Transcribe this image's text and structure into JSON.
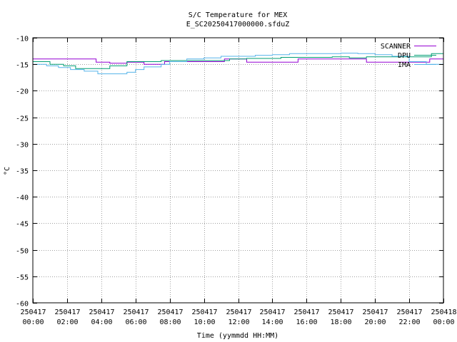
{
  "colors": {
    "background": "#ffffff",
    "axis": "#000000",
    "grid": "#a0a0a0",
    "SCANNER": "#9400d3",
    "DPU": "#009e73",
    "IMA": "#56b4e9"
  },
  "chart_data": {
    "type": "line",
    "title": "S/C Temperature for MEX",
    "subtitle": "E_SC20250417000000.sfduZ",
    "xlabel": "Time (yymmdd HH:MM)",
    "ylabel": "°C",
    "ylim": [
      -60,
      -10
    ],
    "xlim_hours": [
      0,
      24
    ],
    "grid": true,
    "legend_position": "top-right",
    "y_ticks": [
      -10,
      -15,
      -20,
      -25,
      -30,
      -35,
      -40,
      -45,
      -50,
      -55,
      -60
    ],
    "x_ticks": [
      {
        "date": "250417",
        "time": "00:00",
        "hour": 0
      },
      {
        "date": "250417",
        "time": "02:00",
        "hour": 2
      },
      {
        "date": "250417",
        "time": "04:00",
        "hour": 4
      },
      {
        "date": "250417",
        "time": "06:00",
        "hour": 6
      },
      {
        "date": "250417",
        "time": "08:00",
        "hour": 8
      },
      {
        "date": "250417",
        "time": "10:00",
        "hour": 10
      },
      {
        "date": "250417",
        "time": "12:00",
        "hour": 12
      },
      {
        "date": "250417",
        "time": "14:00",
        "hour": 14
      },
      {
        "date": "250417",
        "time": "16:00",
        "hour": 16
      },
      {
        "date": "250417",
        "time": "18:00",
        "hour": 18
      },
      {
        "date": "250417",
        "time": "20:00",
        "hour": 20
      },
      {
        "date": "250417",
        "time": "22:00",
        "hour": 22
      },
      {
        "date": "250418",
        "time": "00:00",
        "hour": 24
      }
    ],
    "series": [
      {
        "name": "SCANNER",
        "x": [
          0,
          1.2,
          3.2,
          3.7,
          4.5,
          5.5,
          6.5,
          7.0,
          7.7,
          11.2,
          12.5,
          14.5,
          15.5,
          16.5,
          18.5,
          19.5,
          20.5,
          21.5,
          22.3,
          23.2,
          24
        ],
        "y": [
          -14.0,
          -14.0,
          -14.0,
          -14.6,
          -14.8,
          -14.6,
          -15.0,
          -15.0,
          -14.5,
          -14.0,
          -14.6,
          -14.6,
          -14.0,
          -14.0,
          -14.0,
          -14.6,
          -14.6,
          -14.6,
          -14.6,
          -14.0,
          -14.0
        ]
      },
      {
        "name": "DPU",
        "x": [
          0,
          1.0,
          1.8,
          2.5,
          3.5,
          4.5,
          5.5,
          6.5,
          7.5,
          8.5,
          9.5,
          10.5,
          11.5,
          12.5,
          13.5,
          14.5,
          15.5,
          16.5,
          17.5,
          18.5,
          19.5,
          20.5,
          21.5,
          22.5,
          23.3,
          24
        ],
        "y": [
          -14.5,
          -15.0,
          -15.3,
          -15.8,
          -15.8,
          -15.3,
          -14.5,
          -14.5,
          -14.3,
          -14.3,
          -14.3,
          -14.3,
          -14.0,
          -13.9,
          -13.9,
          -13.7,
          -13.7,
          -13.7,
          -13.6,
          -13.8,
          -13.6,
          -13.6,
          -13.6,
          -13.6,
          -13.0,
          -13.0
        ]
      },
      {
        "name": "IMA",
        "x": [
          0,
          0.8,
          1.5,
          2.2,
          3.0,
          3.8,
          5.0,
          5.5,
          6.0,
          6.5,
          7.5,
          8.0,
          9.0,
          10.0,
          11.0,
          12.0,
          13.0,
          14.0,
          15.0,
          16.0,
          17.0,
          18.0,
          19.0,
          20.0,
          21.0,
          22.0,
          23.0,
          24
        ],
        "y": [
          -15.0,
          -15.3,
          -15.6,
          -16.0,
          -16.3,
          -16.8,
          -16.8,
          -16.5,
          -16.0,
          -15.5,
          -15.0,
          -14.5,
          -14.0,
          -13.8,
          -13.5,
          -13.5,
          -13.3,
          -13.2,
          -13.0,
          -13.0,
          -13.0,
          -12.9,
          -13.0,
          -13.2,
          -13.5,
          -14.5,
          -15.0,
          -15.0
        ]
      }
    ]
  }
}
